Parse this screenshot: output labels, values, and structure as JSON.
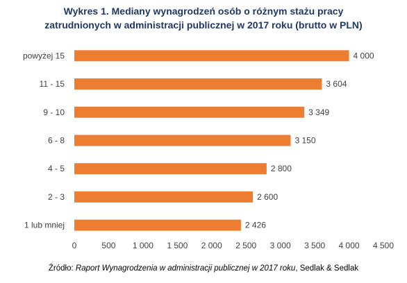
{
  "title_line1": "Wykres 1. Mediany wynagrodzeń osób o różnym stażu pracy",
  "title_line2": "zatrudnionych w administracji publicznej w 2017 roku (brutto w PLN)",
  "source": {
    "prefix": "Źródło: ",
    "title": "Raport Wynagrodzenia w administracji publicznej w 2017 roku",
    "suffix": ", Sedlak & Sedlak"
  },
  "chart_data": {
    "type": "bar",
    "orientation": "horizontal",
    "categories": [
      "powyżej 15",
      "11 - 15",
      "9 - 10",
      "6 - 8",
      "4 - 5",
      "2 - 3",
      "1 lub mniej"
    ],
    "values": [
      4000,
      3604,
      3349,
      3150,
      2800,
      2600,
      2426
    ],
    "value_labels": [
      "4 000",
      "3 604",
      "3 349",
      "3 150",
      "2 800",
      "2 600",
      "2 426"
    ],
    "xticks": [
      0,
      500,
      1000,
      1500,
      2000,
      2500,
      3000,
      3500,
      4000,
      4500
    ],
    "xtick_labels": [
      "0",
      "500",
      "1 000",
      "1 500",
      "2 000",
      "2 500",
      "3 000",
      "3 500",
      "4 000",
      "4 500"
    ],
    "xlim": [
      0,
      4500
    ],
    "grid": false,
    "bar_color": "#ed7d31"
  }
}
